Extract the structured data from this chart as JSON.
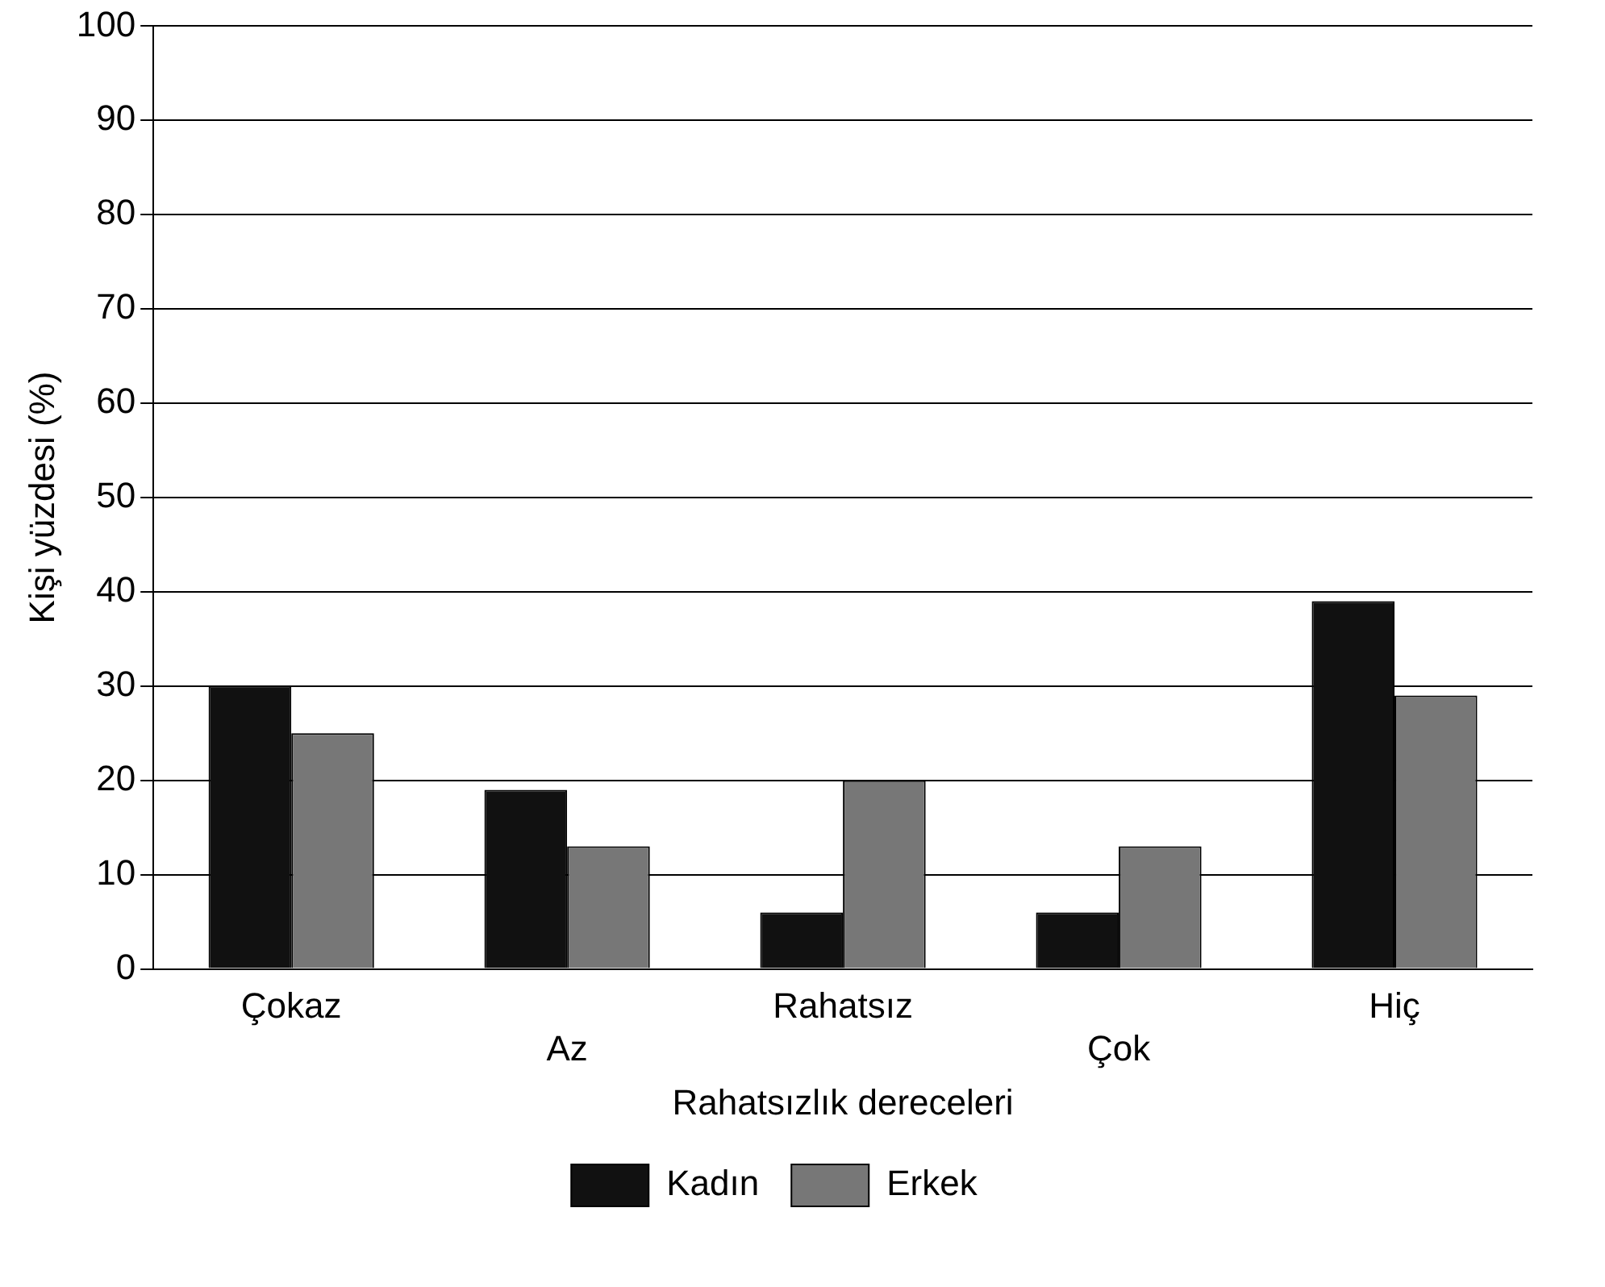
{
  "chart_data": {
    "type": "bar",
    "xlabel": "Rahatsızlık dereceleri",
    "ylabel": "Kişi yüzdesi (%)",
    "categories": [
      "Çokaz",
      "Az",
      "Rahatsız",
      "Çok",
      "Hiç"
    ],
    "series": [
      {
        "name": "Kadın",
        "color": "#111111",
        "values": [
          30,
          19,
          6,
          6,
          39
        ]
      },
      {
        "name": "Erkek",
        "color": "#777777",
        "values": [
          25,
          13,
          20,
          13,
          29
        ]
      }
    ],
    "ylim": [
      0,
      100
    ],
    "yticks": [
      0,
      10,
      20,
      30,
      40,
      50,
      60,
      70,
      80,
      90,
      100
    ],
    "grid": "y",
    "legend": "bottom"
  }
}
